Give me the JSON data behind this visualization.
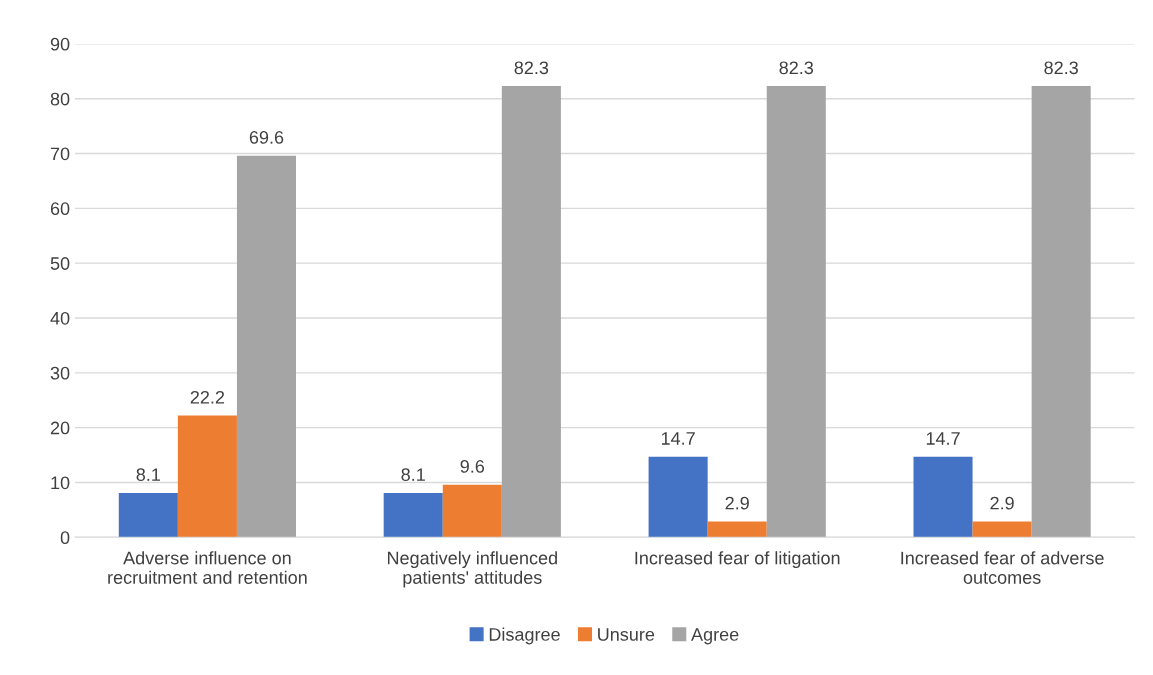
{
  "chart_data": {
    "type": "bar",
    "categories": [
      "Adverse influence on\nrecruitment and retention",
      "Negatively influenced\npatients' attitudes",
      "Increased fear of litigation",
      "Increased fear of adverse\noutcomes"
    ],
    "series": [
      {
        "name": "Disagree",
        "color": "#4472c4",
        "values": [
          8.1,
          8.1,
          14.7,
          14.7
        ]
      },
      {
        "name": "Unsure",
        "color": "#ed7d31",
        "values": [
          22.2,
          9.6,
          2.9,
          2.9
        ]
      },
      {
        "name": "Agree",
        "color": "#a5a5a5",
        "values": [
          69.6,
          82.3,
          82.3,
          82.3
        ]
      }
    ],
    "ylim": [
      0,
      90
    ],
    "yticks": [
      0,
      10,
      20,
      30,
      40,
      50,
      60,
      70,
      80,
      90
    ],
    "grid": "y",
    "legend": "bottom",
    "data_labels": true
  }
}
